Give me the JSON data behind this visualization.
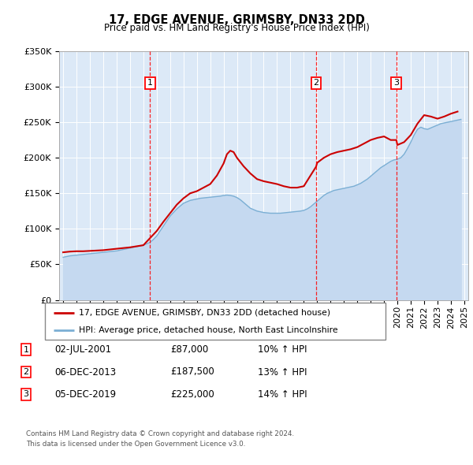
{
  "title": "17, EDGE AVENUE, GRIMSBY, DN33 2DD",
  "subtitle": "Price paid vs. HM Land Registry's House Price Index (HPI)",
  "legend_line1": "17, EDGE AVENUE, GRIMSBY, DN33 2DD (detached house)",
  "legend_line2": "HPI: Average price, detached house, North East Lincolnshire",
  "footer_line1": "Contains HM Land Registry data © Crown copyright and database right 2024.",
  "footer_line2": "This data is licensed under the Open Government Licence v3.0.",
  "sales": [
    {
      "num": 1,
      "date": "02-JUL-2001",
      "price": 87000,
      "pct": "10%",
      "year": 2001.5
    },
    {
      "num": 2,
      "date": "06-DEC-2013",
      "price": 187500,
      "pct": "13%",
      "year": 2013.92
    },
    {
      "num": 3,
      "date": "05-DEC-2019",
      "price": 225000,
      "pct": "14%",
      "year": 2019.92
    }
  ],
  "hpi_fill_color": "#c5d9f0",
  "price_color": "#cc0000",
  "hpi_line_color": "#7bafd4",
  "background_color": "#dce9f7",
  "ylim": [
    0,
    350000
  ],
  "yticks": [
    0,
    50000,
    100000,
    150000,
    200000,
    250000,
    300000,
    350000
  ],
  "xlim_start": 1994.7,
  "xlim_end": 2025.3,
  "xtick_years": [
    1995,
    1996,
    1997,
    1998,
    1999,
    2000,
    2001,
    2002,
    2003,
    2004,
    2005,
    2006,
    2007,
    2008,
    2009,
    2010,
    2011,
    2012,
    2013,
    2014,
    2015,
    2016,
    2017,
    2018,
    2019,
    2020,
    2021,
    2022,
    2023,
    2024,
    2025
  ],
  "hpi_years": [
    1995.0,
    1995.25,
    1995.5,
    1995.75,
    1996.0,
    1996.25,
    1996.5,
    1996.75,
    1997.0,
    1997.25,
    1997.5,
    1997.75,
    1998.0,
    1998.25,
    1998.5,
    1998.75,
    1999.0,
    1999.25,
    1999.5,
    1999.75,
    2000.0,
    2000.25,
    2000.5,
    2000.75,
    2001.0,
    2001.25,
    2001.5,
    2001.75,
    2002.0,
    2002.25,
    2002.5,
    2002.75,
    2003.0,
    2003.25,
    2003.5,
    2003.75,
    2004.0,
    2004.25,
    2004.5,
    2004.75,
    2005.0,
    2005.25,
    2005.5,
    2005.75,
    2006.0,
    2006.25,
    2006.5,
    2006.75,
    2007.0,
    2007.25,
    2007.5,
    2007.75,
    2008.0,
    2008.25,
    2008.5,
    2008.75,
    2009.0,
    2009.25,
    2009.5,
    2009.75,
    2010.0,
    2010.25,
    2010.5,
    2010.75,
    2011.0,
    2011.25,
    2011.5,
    2011.75,
    2012.0,
    2012.25,
    2012.5,
    2012.75,
    2013.0,
    2013.25,
    2013.5,
    2013.75,
    2014.0,
    2014.25,
    2014.5,
    2014.75,
    2015.0,
    2015.25,
    2015.5,
    2015.75,
    2016.0,
    2016.25,
    2016.5,
    2016.75,
    2017.0,
    2017.25,
    2017.5,
    2017.75,
    2018.0,
    2018.25,
    2018.5,
    2018.75,
    2019.0,
    2019.25,
    2019.5,
    2019.75,
    2020.0,
    2020.25,
    2020.5,
    2020.75,
    2021.0,
    2021.25,
    2021.5,
    2021.75,
    2022.0,
    2022.25,
    2022.5,
    2022.75,
    2023.0,
    2023.25,
    2023.5,
    2023.75,
    2024.0,
    2024.25,
    2024.5,
    2024.75
  ],
  "hpi_values": [
    60000,
    61000,
    62000,
    62500,
    63000,
    63500,
    64000,
    64500,
    65000,
    65500,
    66000,
    66500,
    67000,
    67500,
    68000,
    68500,
    69000,
    70000,
    71000,
    72000,
    73000,
    74000,
    75000,
    76000,
    77000,
    79000,
    81000,
    85000,
    90000,
    97000,
    104000,
    111000,
    118000,
    123000,
    128000,
    132000,
    136000,
    138000,
    140000,
    141000,
    142000,
    143000,
    143500,
    144000,
    144500,
    145000,
    145500,
    146000,
    147000,
    147500,
    147000,
    146000,
    144000,
    141000,
    137000,
    133000,
    129000,
    127000,
    125000,
    124000,
    123000,
    122500,
    122000,
    122000,
    122000,
    122000,
    122500,
    123000,
    123500,
    124000,
    124500,
    125000,
    126000,
    128000,
    131000,
    135000,
    139000,
    143000,
    147000,
    150000,
    152000,
    154000,
    155000,
    156000,
    157000,
    158000,
    159000,
    160000,
    162000,
    164000,
    167000,
    170000,
    174000,
    178000,
    182000,
    186000,
    189000,
    192000,
    195000,
    197000,
    198000,
    200000,
    205000,
    213000,
    222000,
    232000,
    240000,
    243000,
    241000,
    240000,
    242000,
    244000,
    246000,
    248000,
    249000,
    250000,
    251000,
    252000,
    253000,
    254000
  ],
  "price_years": [
    1995.0,
    1995.5,
    1996.0,
    1996.5,
    1997.0,
    1997.5,
    1998.0,
    1998.5,
    1999.0,
    1999.5,
    2000.0,
    2000.5,
    2001.0,
    2001.5,
    2002.0,
    2002.5,
    2003.0,
    2003.5,
    2004.0,
    2004.5,
    2005.0,
    2005.5,
    2006.0,
    2006.5,
    2007.0,
    2007.25,
    2007.5,
    2007.75,
    2008.0,
    2008.5,
    2009.0,
    2009.5,
    2010.0,
    2010.5,
    2011.0,
    2011.5,
    2012.0,
    2012.5,
    2013.0,
    2013.5,
    2013.92,
    2014.0,
    2014.5,
    2015.0,
    2015.5,
    2016.0,
    2016.5,
    2017.0,
    2017.5,
    2018.0,
    2018.5,
    2019.0,
    2019.5,
    2019.92,
    2020.0,
    2020.5,
    2021.0,
    2021.5,
    2022.0,
    2022.5,
    2023.0,
    2023.5,
    2024.0,
    2024.5
  ],
  "price_values": [
    67000,
    68000,
    68500,
    68500,
    69000,
    69500,
    70000,
    71000,
    72000,
    73000,
    74000,
    75500,
    77000,
    87000,
    97000,
    110000,
    122000,
    134000,
    143000,
    150000,
    153000,
    158000,
    163000,
    175000,
    192000,
    205000,
    210000,
    208000,
    200000,
    188000,
    178000,
    170000,
    167000,
    165000,
    163000,
    160000,
    158000,
    158000,
    160000,
    175000,
    187500,
    193000,
    200000,
    205000,
    208000,
    210000,
    212000,
    215000,
    220000,
    225000,
    228000,
    230000,
    225000,
    225000,
    218000,
    222000,
    232000,
    248000,
    260000,
    258000,
    255000,
    258000,
    262000,
    265000
  ]
}
